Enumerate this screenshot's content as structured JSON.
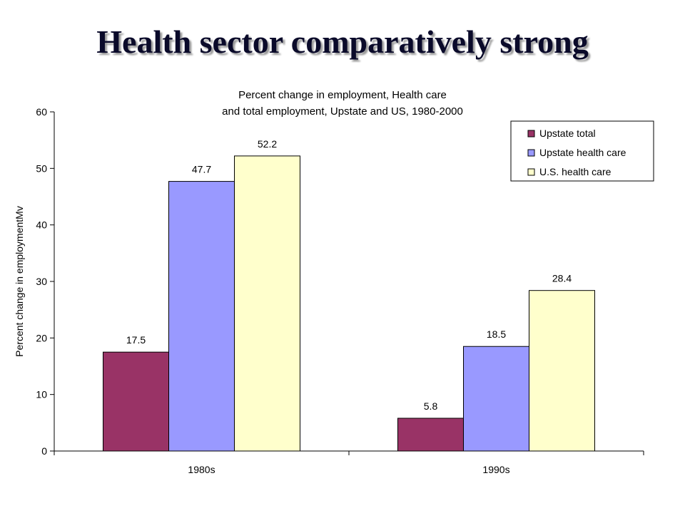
{
  "slide": {
    "title": "Health sector comparatively strong"
  },
  "chart_data": {
    "type": "bar",
    "title_lines": [
      "Percent change in employment, Health care",
      "and total employment, Upstate and US, 1980-2000"
    ],
    "ylabel": "Percent change in employmentMv",
    "xlabel": "",
    "categories": [
      "1980s",
      "1990s"
    ],
    "ylim": [
      0,
      60
    ],
    "yticks": [
      0,
      10,
      20,
      30,
      40,
      50,
      60
    ],
    "series": [
      {
        "name": "Upstate total",
        "values": [
          17.5,
          5.8
        ],
        "color": "#993366"
      },
      {
        "name": "Upstate health care",
        "values": [
          47.7,
          18.5
        ],
        "color": "#9999ff"
      },
      {
        "name": "U.S. health care",
        "values": [
          52.2,
          28.4
        ],
        "color": "#ffffcc"
      }
    ],
    "legend_position": "top-right",
    "grid": false
  }
}
